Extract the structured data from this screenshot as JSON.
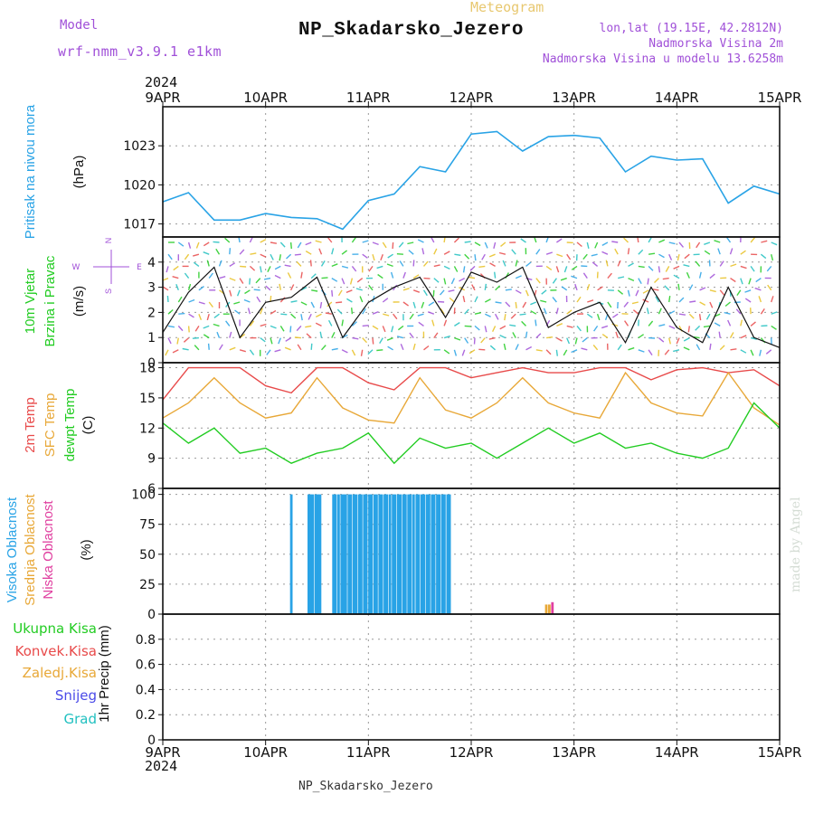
{
  "header": {
    "meteogram": "Meteogram",
    "title": "NP_Skadarsko_Jezero",
    "model_label": "Model",
    "model_name": "wrf-nmm_v3.9.1 e1km",
    "lonlat": "lon,lat (19.15E, 42.2812N)",
    "altitude": "Nadmorska Visina 2m",
    "model_altitude": "Nadmorska Visina u modelu 13.6258m",
    "year": "2024",
    "footer": "NP_Skadarsko_Jezero",
    "credit": "made by Angel"
  },
  "colors": {
    "pressure": "#29a3e6",
    "temp2m": "#e84a4a",
    "sfc_temp": "#e8a838",
    "dewpoint": "#22cc22",
    "high_cloud": "#29a3e6",
    "mid_cloud": "#e8a838",
    "low_cloud": "#e040a0",
    "purple": "#a050d8"
  },
  "chart_data": [
    {
      "type": "line",
      "panel": "pressure",
      "ylabel_left": "Pritisak na nivou mora",
      "ylabel_unit": "(hPa)",
      "yticks": [
        1017,
        1020,
        1023
      ],
      "ylim": [
        1016,
        1026
      ],
      "x_days": [
        0,
        0.25,
        0.5,
        0.75,
        1,
        1.25,
        1.5,
        1.75,
        2,
        2.25,
        2.5,
        2.75,
        3,
        3.25,
        3.5,
        3.75,
        4,
        4.25,
        4.5,
        4.75,
        5,
        5.25,
        5.5,
        5.75,
        6
      ],
      "values": [
        1018.7,
        1019.4,
        1017.3,
        1017.3,
        1017.8,
        1017.5,
        1017.4,
        1016.6,
        1018.8,
        1019.3,
        1021.4,
        1021.0,
        1023.9,
        1024.1,
        1022.6,
        1023.7,
        1023.8,
        1023.6,
        1021.0,
        1022.2,
        1021.9,
        1022.0,
        1018.6,
        1019.9,
        1019.3
      ],
      "grid": true
    },
    {
      "type": "line",
      "panel": "wind",
      "ylabel_left": "10m Vjetar",
      "ylabel_left2": "Brzina i Pravac",
      "ylabel_unit": "(m/s)",
      "compass": {
        "north": "N",
        "west": "W",
        "east": "E",
        "south": "S"
      },
      "yticks": [
        0,
        1,
        2,
        3,
        4
      ],
      "ylim": [
        0,
        5
      ],
      "x_days": [
        0,
        0.25,
        0.5,
        0.75,
        1,
        1.25,
        1.5,
        1.75,
        2,
        2.25,
        2.5,
        2.75,
        3,
        3.25,
        3.5,
        3.75,
        4,
        4.25,
        4.5,
        4.75,
        5,
        5.25,
        5.5,
        5.75,
        6
      ],
      "values": [
        1.2,
        2.8,
        3.8,
        1.0,
        2.4,
        2.6,
        3.4,
        1.0,
        2.4,
        3.0,
        3.4,
        1.8,
        3.6,
        3.2,
        3.8,
        1.4,
        2.0,
        2.4,
        0.8,
        3.0,
        1.4,
        0.8,
        3.0,
        1.0,
        0.6
      ],
      "grid": true
    },
    {
      "type": "line",
      "panel": "temperature",
      "ylabel_left": [
        "2m Temp",
        "SFC Temp",
        "dewpt Temp"
      ],
      "ylabel_unit": "(C)",
      "yticks": [
        6,
        9,
        12,
        15,
        18
      ],
      "ylim": [
        6,
        18.5
      ],
      "x_days": [
        0,
        0.25,
        0.5,
        0.75,
        1,
        1.25,
        1.5,
        1.75,
        2,
        2.25,
        2.5,
        2.75,
        3,
        3.25,
        3.5,
        3.75,
        4,
        4.25,
        4.5,
        4.75,
        5,
        5.25,
        5.5,
        5.75,
        6
      ],
      "series": [
        {
          "name": "2m Temp",
          "values": [
            14.8,
            18.0,
            18.0,
            18.0,
            16.2,
            15.5,
            18.0,
            18.0,
            16.5,
            15.8,
            18.0,
            18.0,
            17.0,
            17.5,
            18.0,
            17.5,
            17.5,
            18.0,
            18.0,
            16.8,
            17.8,
            18.0,
            17.5,
            17.8,
            16.2
          ]
        },
        {
          "name": "SFC Temp",
          "values": [
            13.0,
            14.5,
            17.0,
            14.5,
            13.0,
            13.5,
            17.0,
            14.0,
            12.8,
            12.5,
            17.0,
            13.8,
            13.0,
            14.5,
            17.0,
            14.5,
            13.5,
            13.0,
            17.5,
            14.5,
            13.5,
            13.2,
            17.5,
            14.0,
            12.3
          ]
        },
        {
          "name": "dewpt Temp",
          "values": [
            12.5,
            10.5,
            12.0,
            9.5,
            10.0,
            8.5,
            9.5,
            10.0,
            11.5,
            8.5,
            11.0,
            10.0,
            10.5,
            9.0,
            10.5,
            12.0,
            10.5,
            11.5,
            10.0,
            10.5,
            9.5,
            9.0,
            10.0,
            14.5,
            12.0
          ]
        }
      ],
      "grid": true
    },
    {
      "type": "bar",
      "panel": "cloud",
      "ylabel_left": [
        "Visoka Oblacnost",
        "Srednja Oblacnost",
        "Niska Oblacnost"
      ],
      "ylabel_unit": "(%)",
      "yticks": [
        0,
        25,
        50,
        75,
        100
      ],
      "ylim": [
        0,
        105
      ],
      "series": [
        {
          "name": "Visoka Oblacnost",
          "bars_days": [
            1.25,
            1.42,
            1.44,
            1.46,
            1.49,
            1.51,
            1.53,
            1.66,
            1.68,
            1.71,
            1.74,
            1.76,
            1.78,
            1.81,
            1.83,
            1.86,
            1.88,
            1.91,
            1.93,
            1.96,
            1.98,
            2.01,
            2.03,
            2.06,
            2.08,
            2.11,
            2.13,
            2.16,
            2.18,
            2.21,
            2.24,
            2.26,
            2.29,
            2.31,
            2.34,
            2.36,
            2.39,
            2.41,
            2.44,
            2.47,
            2.49,
            2.52,
            2.54,
            2.57,
            2.59,
            2.62,
            2.64,
            2.67,
            2.69,
            2.72,
            2.74,
            2.77,
            2.79
          ],
          "value": 100
        },
        {
          "name": "Srednja Oblacnost",
          "bars_days": [
            3.73,
            3.76
          ],
          "value": 8
        },
        {
          "name": "Niska Oblacnost",
          "bars_days": [
            3.79
          ],
          "value": 10
        }
      ],
      "grid": true
    },
    {
      "type": "bar",
      "panel": "precip",
      "legend": [
        "Ukupna Kisa",
        "Konvek.Kisa",
        "Zaledj.Kisa",
        "Snijeg",
        "Grad"
      ],
      "ylabel_unit": "1hr Precip (mm)",
      "yticks": [
        0,
        0.2,
        0.4,
        0.6,
        0.8
      ],
      "ylim": [
        0,
        1
      ],
      "values": [],
      "grid": true
    }
  ],
  "x_axis": {
    "labels": [
      "9APR",
      "10APR",
      "11APR",
      "12APR",
      "13APR",
      "14APR",
      "15APR"
    ],
    "days": 6
  }
}
